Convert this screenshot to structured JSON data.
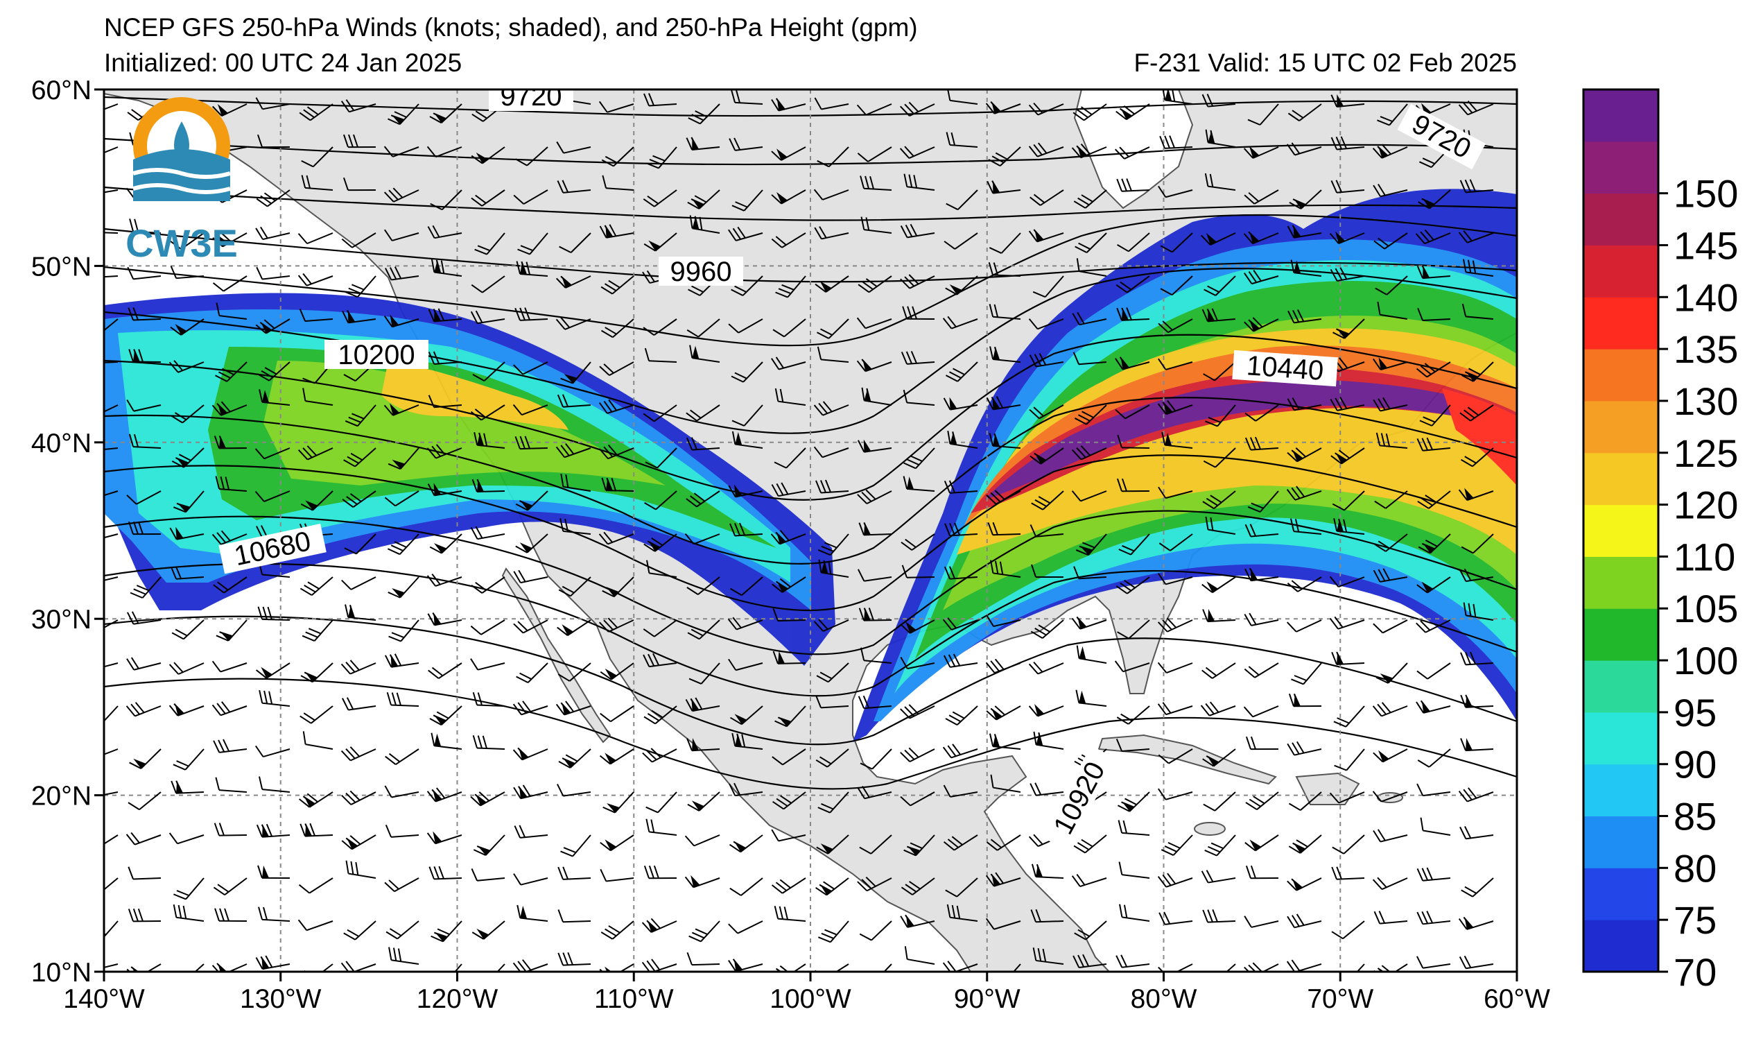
{
  "header": {
    "title_line1": "NCEP GFS 250-hPa Winds (knots; shaded), and 250-hPa Height (gpm)",
    "initialized": "Initialized: 00 UTC 24 Jan 2025",
    "forecast_valid": "F-231  Valid: 15 UTC 02 Feb 2025"
  },
  "logo": {
    "text": "CW3E",
    "ring_color": "#f39c12",
    "wave_color": "#2d8ab5"
  },
  "map": {
    "lon_range": [
      -140,
      -60
    ],
    "lat_range": [
      10,
      60
    ],
    "lon_ticks": [
      "140°W",
      "130°W",
      "120°W",
      "110°W",
      "100°W",
      "90°W",
      "80°W",
      "70°W",
      "60°W"
    ],
    "lat_ticks": [
      "10°N",
      "20°N",
      "30°N",
      "40°N",
      "50°N",
      "60°N"
    ],
    "gridlines": true,
    "land_color": "#e2e2e2",
    "ocean_color": "#ffffff"
  },
  "contours": {
    "labels": [
      "9720",
      "9720",
      "9960",
      "10200",
      "10440",
      "10680",
      "10920"
    ]
  },
  "colorbar": {
    "ticks": [
      "70",
      "75",
      "80",
      "85",
      "90",
      "95",
      "100",
      "105",
      "110",
      "120",
      "125",
      "130",
      "135",
      "140",
      "145",
      "150"
    ],
    "colors": [
      "#1f2ccf",
      "#2246e8",
      "#1e8ef5",
      "#22c8f3",
      "#2ae6d8",
      "#2bd99a",
      "#21b82c",
      "#7ed321",
      "#f5f51a",
      "#f5c823",
      "#f59f24",
      "#f57521",
      "#ff2b1f",
      "#d62231",
      "#a81f4f",
      "#8e1f77",
      "#6a1f90"
    ]
  }
}
